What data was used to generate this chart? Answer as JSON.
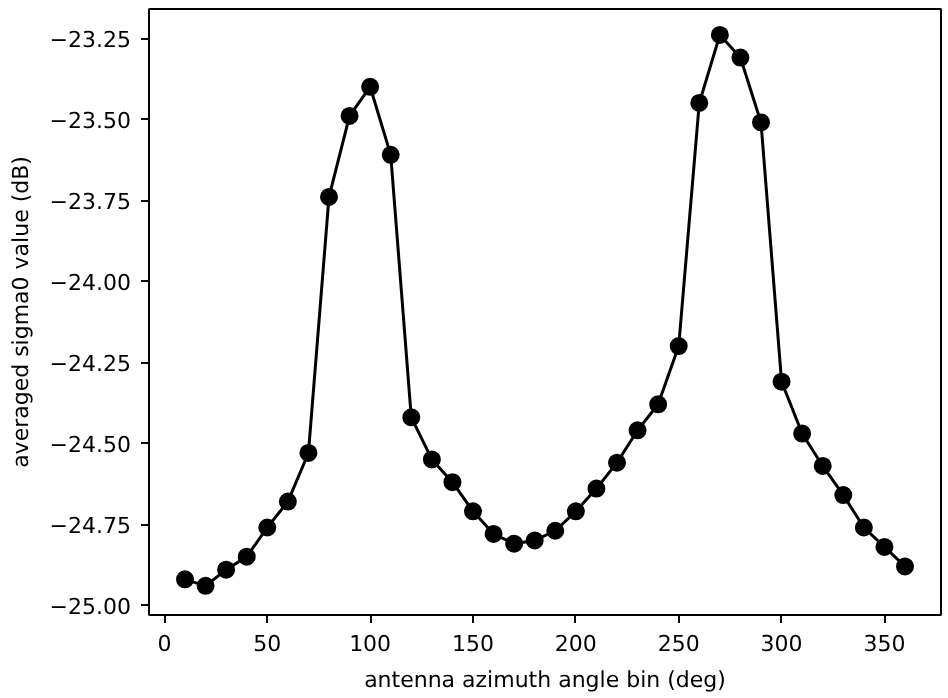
{
  "chart_data": {
    "type": "line",
    "xlabel": "antenna azimuth angle bin (deg)",
    "ylabel": "averaged sigma0 value (dB)",
    "x": [
      10,
      20,
      30,
      40,
      50,
      60,
      70,
      80,
      90,
      100,
      110,
      120,
      130,
      140,
      150,
      160,
      170,
      180,
      190,
      200,
      210,
      220,
      230,
      240,
      250,
      260,
      270,
      280,
      290,
      300,
      310,
      320,
      330,
      340,
      350,
      360
    ],
    "series": [
      {
        "color": "#000000",
        "values": [
          -24.92,
          -24.94,
          -24.89,
          -24.85,
          -24.76,
          -24.68,
          -24.53,
          -23.74,
          -23.49,
          -23.4,
          -23.61,
          -24.42,
          -24.55,
          -24.62,
          -24.71,
          -24.78,
          -24.81,
          -24.8,
          -24.77,
          -24.71,
          -24.64,
          -24.56,
          -24.46,
          -24.38,
          -24.2,
          -23.45,
          -23.24,
          -23.31,
          -23.51,
          -24.31,
          -24.47,
          -24.57,
          -24.66,
          -24.76,
          -24.82,
          -24.88
        ]
      }
    ],
    "xlim": [
      -7.5,
      377.5
    ],
    "ylim": [
      -25.03,
      -23.16
    ],
    "xticks": [
      0,
      50,
      100,
      150,
      200,
      250,
      300,
      350
    ],
    "yticks": [
      {
        "value": -25.0,
        "label": "−25.00"
      },
      {
        "value": -24.75,
        "label": "−24.75"
      },
      {
        "value": -24.5,
        "label": "−24.50"
      },
      {
        "value": -24.25,
        "label": "−24.25"
      },
      {
        "value": -24.0,
        "label": "−24.00"
      },
      {
        "value": -23.75,
        "label": "−23.75"
      },
      {
        "value": -23.5,
        "label": "−23.50"
      },
      {
        "value": -23.25,
        "label": "−23.25"
      }
    ],
    "grid": false,
    "marker": "circle",
    "line_style": "solid"
  }
}
